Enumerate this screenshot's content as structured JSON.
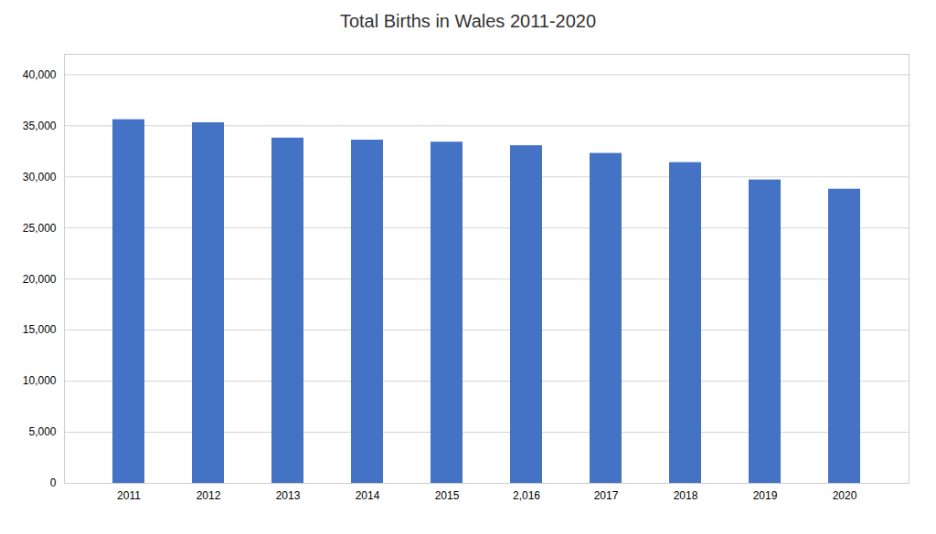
{
  "chart_data": {
    "type": "bar",
    "title": "Total Births in Wales 2011-2020",
    "categories": [
      "2011",
      "2012",
      "2013",
      "2014",
      "2015",
      "2,016",
      "2017",
      "2018",
      "2019",
      "2020"
    ],
    "values": [
      35600,
      35300,
      33800,
      33600,
      33400,
      33050,
      32300,
      31400,
      29700,
      28800
    ],
    "color": "#4472C4",
    "ylim": [
      0,
      42000
    ],
    "yticks": [
      0,
      {
        "value": 5000,
        "label": "5,000"
      },
      {
        "value": 10000,
        "label": "10,000"
      },
      {
        "value": 15000,
        "label": "15,000"
      },
      {
        "value": 20000,
        "label": "20,000"
      },
      {
        "value": 25000,
        "label": "25,000"
      },
      {
        "value": 30000,
        "label": "30,000"
      },
      {
        "value": 35000,
        "label": "35,000"
      },
      {
        "value": 40000,
        "label": "40,000"
      }
    ],
    "grid": true
  }
}
